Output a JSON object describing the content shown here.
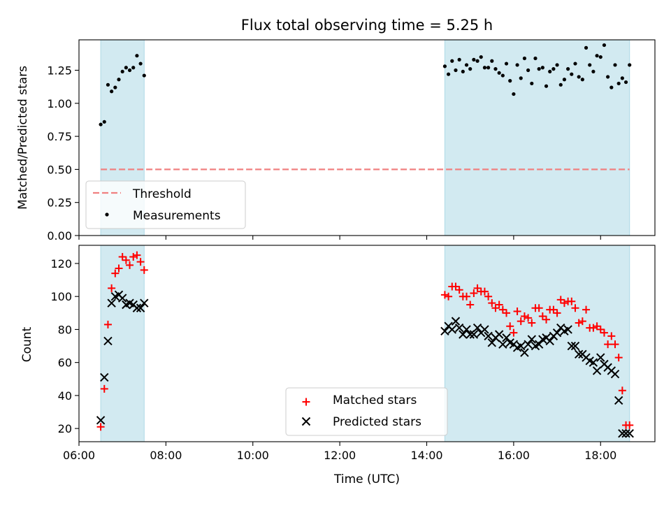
{
  "chart_data": [
    {
      "type": "scatter",
      "title": "Flux total observing time = 5.25 h",
      "xlabel": "",
      "ylabel": "Matched/Predicted stars",
      "xlim": [
        "06:00",
        "19:15"
      ],
      "ylim": [
        0,
        1.48
      ],
      "yticks": [
        "0.00",
        "0.25",
        "0.50",
        "0.75",
        "1.00",
        "1.25"
      ],
      "shaded_intervals": [
        [
          "06:30",
          "07:30"
        ],
        [
          "14:25",
          "18:40"
        ]
      ],
      "shade_color": "#add8e6",
      "threshold": {
        "name": "Threshold",
        "value": 0.5,
        "color": "#f08080",
        "x": [
          "06:30",
          "18:40"
        ]
      },
      "legend": {
        "location": "lower-left",
        "entries": [
          "Threshold",
          "Measurements"
        ]
      },
      "series": [
        {
          "name": "Measurements",
          "color": "#000000",
          "marker": "dot",
          "x": [
            "06:30",
            "06:35",
            "06:40",
            "06:45",
            "06:50",
            "06:55",
            "07:00",
            "07:05",
            "07:10",
            "07:15",
            "07:20",
            "07:25",
            "07:30",
            "14:25",
            "14:30",
            "14:35",
            "14:40",
            "14:45",
            "14:50",
            "14:55",
            "15:00",
            "15:05",
            "15:10",
            "15:15",
            "15:20",
            "15:25",
            "15:30",
            "15:35",
            "15:40",
            "15:45",
            "15:50",
            "15:55",
            "16:00",
            "16:05",
            "16:10",
            "16:15",
            "16:20",
            "16:25",
            "16:30",
            "16:35",
            "16:40",
            "16:45",
            "16:50",
            "16:55",
            "17:00",
            "17:05",
            "17:10",
            "17:15",
            "17:20",
            "17:25",
            "17:30",
            "17:35",
            "17:40",
            "17:45",
            "17:50",
            "17:55",
            "18:00",
            "18:05",
            "18:10",
            "18:15",
            "18:20",
            "18:25",
            "18:30",
            "18:35",
            "18:40"
          ],
          "y": [
            0.84,
            0.86,
            1.14,
            1.09,
            1.12,
            1.18,
            1.24,
            1.27,
            1.25,
            1.27,
            1.36,
            1.3,
            1.21,
            1.28,
            1.22,
            1.32,
            1.25,
            1.33,
            1.24,
            1.29,
            1.26,
            1.33,
            1.32,
            1.35,
            1.27,
            1.27,
            1.32,
            1.26,
            1.23,
            1.21,
            1.3,
            1.17,
            1.07,
            1.29,
            1.19,
            1.34,
            1.25,
            1.15,
            1.34,
            1.26,
            1.27,
            1.13,
            1.24,
            1.26,
            1.29,
            1.14,
            1.18,
            1.26,
            1.22,
            1.3,
            1.2,
            1.18,
            1.42,
            1.29,
            1.24,
            1.36,
            1.35,
            1.44,
            1.2,
            1.12,
            1.29,
            1.15,
            1.19,
            1.16,
            1.29
          ]
        }
      ]
    },
    {
      "type": "scatter",
      "title": "",
      "xlabel": "Time (UTC)",
      "ylabel": "Count",
      "xlim": [
        "06:00",
        "19:15"
      ],
      "ylim": [
        12,
        131
      ],
      "xticks": [
        "06:00",
        "08:00",
        "10:00",
        "12:00",
        "14:00",
        "16:00",
        "18:00"
      ],
      "yticks": [
        "20",
        "40",
        "60",
        "80",
        "100",
        "120"
      ],
      "shaded_intervals": [
        [
          "06:30",
          "07:30"
        ],
        [
          "14:25",
          "18:40"
        ]
      ],
      "shade_color": "#add8e6",
      "legend": {
        "location": "lower-center",
        "entries": [
          "Matched stars",
          "Predicted stars"
        ]
      },
      "series": [
        {
          "name": "Matched stars",
          "color": "#ff0000",
          "marker": "plus",
          "x": [
            "06:30",
            "06:35",
            "06:40",
            "06:45",
            "06:50",
            "06:55",
            "07:00",
            "07:05",
            "07:10",
            "07:15",
            "07:20",
            "07:25",
            "07:30",
            "14:25",
            "14:30",
            "14:35",
            "14:40",
            "14:45",
            "14:50",
            "14:55",
            "15:00",
            "15:05",
            "15:10",
            "15:15",
            "15:20",
            "15:25",
            "15:30",
            "15:35",
            "15:40",
            "15:45",
            "15:50",
            "15:55",
            "16:00",
            "16:05",
            "16:10",
            "16:15",
            "16:20",
            "16:25",
            "16:30",
            "16:35",
            "16:40",
            "16:45",
            "16:50",
            "16:55",
            "17:00",
            "17:05",
            "17:10",
            "17:15",
            "17:20",
            "17:25",
            "17:30",
            "17:35",
            "17:40",
            "17:45",
            "17:50",
            "17:55",
            "18:00",
            "18:05",
            "18:10",
            "18:15",
            "18:20",
            "18:25",
            "18:30",
            "18:35",
            "18:40"
          ],
          "y": [
            21,
            44,
            83,
            105,
            114,
            117,
            124,
            122,
            119,
            124,
            125,
            121,
            116,
            101,
            100,
            106,
            106,
            104,
            100,
            100,
            95,
            102,
            105,
            103,
            103,
            100,
            96,
            93,
            95,
            92,
            90,
            82,
            78,
            91,
            85,
            88,
            87,
            84,
            93,
            93,
            88,
            86,
            92,
            92,
            90,
            98,
            96,
            97,
            97,
            93,
            84,
            85,
            92,
            81,
            81,
            82,
            80,
            78,
            71,
            76,
            71,
            63,
            43,
            22,
            22
          ]
        },
        {
          "name": "Predicted stars",
          "color": "#000000",
          "marker": "x",
          "x": [
            "06:30",
            "06:35",
            "06:40",
            "06:45",
            "06:50",
            "06:55",
            "07:00",
            "07:05",
            "07:10",
            "07:15",
            "07:20",
            "07:25",
            "07:30",
            "14:25",
            "14:30",
            "14:35",
            "14:40",
            "14:45",
            "14:50",
            "14:55",
            "15:00",
            "15:05",
            "15:10",
            "15:15",
            "15:20",
            "15:25",
            "15:30",
            "15:35",
            "15:40",
            "15:45",
            "15:50",
            "15:55",
            "16:00",
            "16:05",
            "16:10",
            "16:15",
            "16:20",
            "16:25",
            "16:30",
            "16:35",
            "16:40",
            "16:45",
            "16:50",
            "16:55",
            "17:00",
            "17:05",
            "17:10",
            "17:15",
            "17:20",
            "17:25",
            "17:30",
            "17:35",
            "17:40",
            "17:45",
            "17:50",
            "17:55",
            "18:00",
            "18:05",
            "18:10",
            "18:15",
            "18:20",
            "18:25",
            "18:30",
            "18:35",
            "18:40"
          ],
          "y": [
            25,
            51,
            73,
            96,
            100,
            101,
            99,
            95,
            96,
            95,
            93,
            93,
            96,
            79,
            82,
            80,
            85,
            81,
            77,
            80,
            77,
            77,
            81,
            78,
            80,
            76,
            72,
            75,
            77,
            71,
            75,
            72,
            71,
            69,
            70,
            66,
            71,
            74,
            70,
            71,
            74,
            75,
            73,
            76,
            78,
            81,
            79,
            80,
            70,
            70,
            65,
            65,
            63,
            61,
            60,
            55,
            63,
            59,
            57,
            55,
            53,
            37,
            17,
            17,
            17
          ]
        }
      ]
    }
  ]
}
